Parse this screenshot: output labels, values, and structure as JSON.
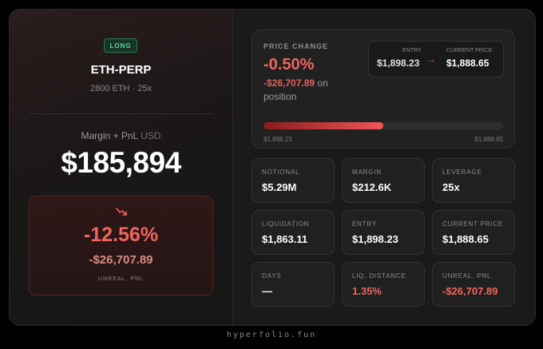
{
  "position": {
    "side": "LONG",
    "ticker": "ETH-PERP",
    "size_leverage": "2800 ETH · 25x",
    "margin_label": "Margin + PnL",
    "margin_unit": "USD",
    "margin_value": "$185,894"
  },
  "loss_card": {
    "trend_icon": "trend-down-icon",
    "percent": "-12.56%",
    "amount": "-$26,707.89",
    "label": "UNREAL. PNL"
  },
  "price_change": {
    "title": "PRICE CHANGE",
    "percent": "-0.50%",
    "amount": "-$26,707.89",
    "amount_suffix": "on position",
    "entry_label": "ENTRY",
    "entry_value": "$1,898.23",
    "arrow": "→",
    "current_label": "CURRENT PRICE",
    "current_value": "$1,888.65",
    "bar_fraction": 0.5,
    "bar_min": "$1,898.23",
    "bar_max": "$1,888.65"
  },
  "stats": [
    {
      "label": "NOTIONAL",
      "value": "$5.29M"
    },
    {
      "label": "MARGIN",
      "value": "$212.6K"
    },
    {
      "label": "LEVERAGE",
      "value": "25x"
    },
    {
      "label": "LIQUIDATION",
      "value": "$1,863.11"
    },
    {
      "label": "ENTRY",
      "value": "$1,898.23"
    },
    {
      "label": "CURRENT PRICE",
      "value": "$1,888.65"
    },
    {
      "label": "DAYS",
      "value": "—"
    },
    {
      "label": "LIQ. DISTANCE",
      "value": "1.35%"
    },
    {
      "label": "UNREAL. PNL",
      "value": "-$26,707.89"
    }
  ],
  "colors": {
    "accent_red": "#f0655d",
    "long_green": "#5fd597"
  },
  "footer": "hyperfolio.fun"
}
